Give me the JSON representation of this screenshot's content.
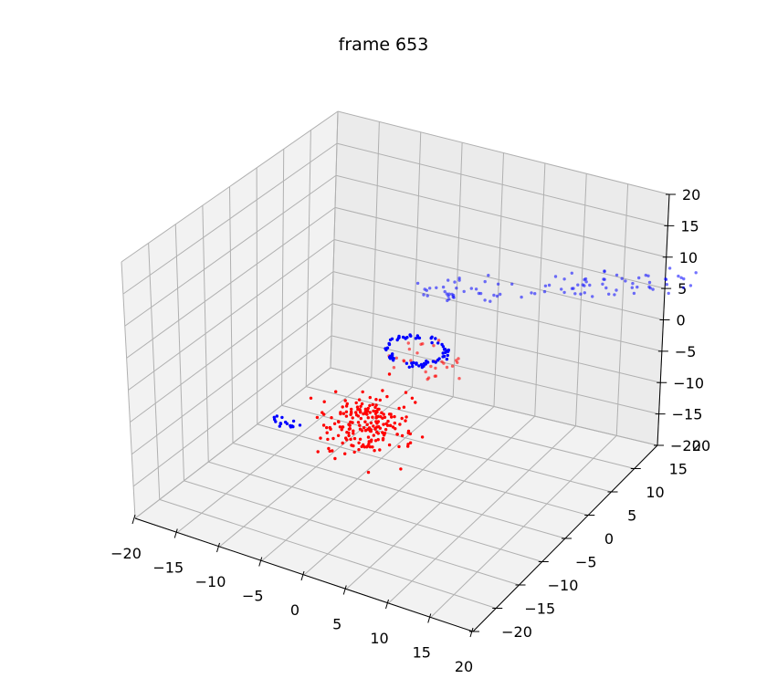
{
  "chart_data": {
    "type": "scatter",
    "title": "frame 653",
    "projection": "3d",
    "xlim": [
      -20,
      20
    ],
    "ylim": [
      -20,
      20
    ],
    "zlim": [
      -20,
      20
    ],
    "grid": true,
    "x_ticks": [
      "−20",
      "−15",
      "−10",
      "−5",
      "0",
      "5",
      "10",
      "15",
      "20"
    ],
    "y_ticks": [
      "−20",
      "−15",
      "−10",
      "−5",
      "0",
      "5",
      "10",
      "15",
      "20"
    ],
    "z_ticks": [
      "−20",
      "−15",
      "−10",
      "−5",
      "0",
      "5",
      "10",
      "15",
      "20"
    ],
    "series": [
      {
        "color": "#0000ff",
        "alpha": 0.55,
        "cluster": "trail",
        "description": "sparse blue trail of points extending toward the back-right, around z = 10 to 15"
      },
      {
        "color": "#0000ff",
        "alpha": 1.0,
        "cluster": "ring",
        "description": "dense blue ring near x 0, y 0, z 1"
      },
      {
        "color": "#0000ff",
        "alpha": 1.0,
        "cluster": "low",
        "description": "small blue cluster near x -8, z -9"
      },
      {
        "color": "#ff0000",
        "alpha": 0.6,
        "cluster": "upper",
        "description": "light red points near the ring, z 0 to 4"
      },
      {
        "color": "#ff0000",
        "alpha": 1.0,
        "cluster": "main",
        "description": "dense red cloud, z -4 to -13"
      }
    ]
  }
}
